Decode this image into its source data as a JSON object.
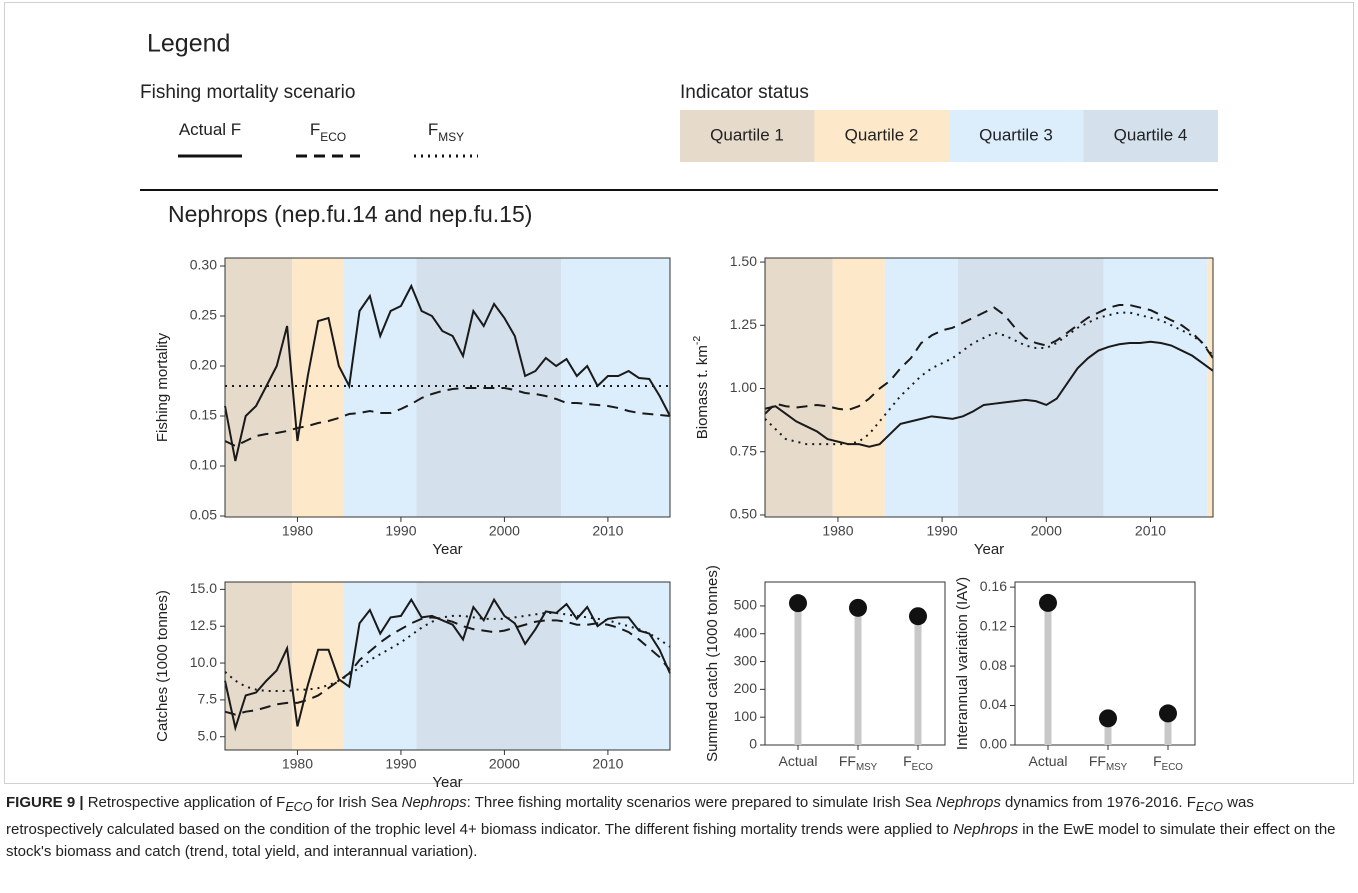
{
  "legend": {
    "title": "Legend",
    "scenario": {
      "title": "Fishing mortality scenario",
      "items": [
        {
          "label": [
            "Actual F"
          ],
          "dash": "solid"
        },
        {
          "label": [
            "F",
            "ECO"
          ],
          "dash": "dashed"
        },
        {
          "label": [
            "F",
            "MSY"
          ],
          "dash": "dotted"
        }
      ]
    },
    "status": {
      "title": "Indicator status",
      "items": [
        {
          "label": "Quartile 1",
          "color": "#e6dacb"
        },
        {
          "label": "Quartile 2",
          "color": "#fde9c9"
        },
        {
          "label": "Quartile 3",
          "color": "#dceefb"
        },
        {
          "label": "Quartile 4",
          "color": "#d4e1ed"
        }
      ]
    }
  },
  "panel_title": "Nephrops (nep.fu.14 and nep.fu.15)",
  "chart_data": [
    {
      "type": "line",
      "x_label": "Year",
      "y_label": [
        "Fishing mortality"
      ],
      "xlim": [
        1973,
        2016
      ],
      "xticks": [
        1980,
        1990,
        2000,
        2010
      ],
      "ylim": [
        0.049,
        0.308
      ],
      "yticks": [
        0.05,
        {
          "value": 0.1,
          "label": "0.10"
        },
        0.15,
        {
          "value": 0.2,
          "label": "0.20"
        },
        0.25,
        {
          "value": 0.3,
          "label": "0.30"
        }
      ],
      "bands": [
        {
          "start": 1973,
          "end": 1979.5,
          "color": "#e6dacb"
        },
        {
          "start": 1979.5,
          "end": 1984.5,
          "color": "#fde9c9"
        },
        {
          "start": 1984.5,
          "end": 1991.5,
          "color": "#dceefb"
        },
        {
          "start": 1991.5,
          "end": 2005.5,
          "color": "#d4e1ed"
        },
        {
          "start": 2005.5,
          "end": 2016,
          "color": "#dceefb"
        }
      ],
      "x": [
        1973,
        1974,
        1975,
        1976,
        1977,
        1978,
        1979,
        1980,
        1981,
        1982,
        1983,
        1984,
        1985,
        1986,
        1987,
        1988,
        1989,
        1990,
        1991,
        1992,
        1993,
        1994,
        1995,
        1996,
        1997,
        1998,
        1999,
        2000,
        2001,
        2002,
        2003,
        2004,
        2005,
        2006,
        2007,
        2008,
        2009,
        2010,
        2011,
        2012,
        2013,
        2014,
        2015,
        2016
      ],
      "series": [
        {
          "color": "#1a1a1a",
          "dash": "solid",
          "values": [
            0.16,
            0.105,
            0.15,
            0.16,
            0.18,
            0.2,
            0.24,
            0.125,
            0.19,
            0.245,
            0.248,
            0.2,
            0.18,
            0.255,
            0.27,
            0.23,
            0.255,
            0.26,
            0.28,
            0.255,
            0.25,
            0.235,
            0.23,
            0.21,
            0.255,
            0.24,
            0.262,
            0.248,
            0.23,
            0.19,
            0.195,
            0.208,
            0.2,
            0.207,
            0.19,
            0.2,
            0.18,
            0.19,
            0.19,
            0.195,
            0.188,
            0.187,
            0.17,
            0.15
          ]
        },
        {
          "color": "#1a1a1a",
          "dash": "dashed",
          "values": [
            0.125,
            0.12,
            0.125,
            0.13,
            0.132,
            0.133,
            0.135,
            0.138,
            0.14,
            0.143,
            0.145,
            0.148,
            0.152,
            0.153,
            0.155,
            0.153,
            0.153,
            0.157,
            0.162,
            0.168,
            0.172,
            0.175,
            0.177,
            0.178,
            0.178,
            0.178,
            0.178,
            0.178,
            0.176,
            0.173,
            0.172,
            0.17,
            0.167,
            0.163,
            0.163,
            0.162,
            0.161,
            0.16,
            0.158,
            0.155,
            0.153,
            0.152,
            0.151,
            0.15
          ]
        },
        {
          "color": "#1a1a1a",
          "dash": "dotted",
          "values": [
            0.18,
            0.18,
            0.18,
            0.18,
            0.18,
            0.18,
            0.18,
            0.18,
            0.18,
            0.18,
            0.18,
            0.18,
            0.18,
            0.18,
            0.18,
            0.18,
            0.18,
            0.18,
            0.18,
            0.18,
            0.18,
            0.18,
            0.18,
            0.18,
            0.18,
            0.18,
            0.18,
            0.18,
            0.18,
            0.18,
            0.18,
            0.18,
            0.18,
            0.18,
            0.18,
            0.18,
            0.18,
            0.18,
            0.18,
            0.18,
            0.18,
            0.18,
            0.18,
            0.18
          ]
        }
      ]
    },
    {
      "type": "line",
      "x_label": "Year",
      "y_label": [
        "Biomass t. km",
        "-2"
      ],
      "xlim": [
        1973,
        2016
      ],
      "xticks": [
        1980,
        1990,
        2000,
        2010
      ],
      "ylim": [
        0.492,
        1.516
      ],
      "yticks": [
        {
          "value": 0.5,
          "label": "0.50"
        },
        0.75,
        {
          "value": 1,
          "label": "1.00"
        },
        1.25,
        {
          "value": 1.5,
          "label": "1.50"
        }
      ],
      "bands": [
        {
          "start": 1973,
          "end": 1979.5,
          "color": "#e6dacb"
        },
        {
          "start": 1979.5,
          "end": 1984.5,
          "color": "#fde9c9"
        },
        {
          "start": 1984.5,
          "end": 1991.5,
          "color": "#dceefb"
        },
        {
          "start": 1991.5,
          "end": 2005.5,
          "color": "#d4e1ed"
        },
        {
          "start": 2005.5,
          "end": 2015.5,
          "color": "#dceefb"
        },
        {
          "start": 2015.5,
          "end": 2016,
          "color": "#fde9c9"
        }
      ],
      "x": [
        1973,
        1974,
        1975,
        1976,
        1977,
        1978,
        1979,
        1980,
        1981,
        1982,
        1983,
        1984,
        1985,
        1986,
        1987,
        1988,
        1989,
        1990,
        1991,
        1992,
        1993,
        1994,
        1995,
        1996,
        1997,
        1998,
        1999,
        2000,
        2001,
        2002,
        2003,
        2004,
        2005,
        2006,
        2007,
        2008,
        2009,
        2010,
        2011,
        2012,
        2013,
        2014,
        2015,
        2016
      ],
      "series": [
        {
          "color": "#1a1a1a",
          "dash": "solid",
          "values": [
            0.92,
            0.93,
            0.9,
            0.87,
            0.85,
            0.83,
            0.8,
            0.79,
            0.78,
            0.78,
            0.77,
            0.78,
            0.82,
            0.86,
            0.87,
            0.88,
            0.89,
            0.885,
            0.88,
            0.89,
            0.91,
            0.935,
            0.94,
            0.945,
            0.95,
            0.955,
            0.95,
            0.935,
            0.96,
            1.02,
            1.08,
            1.12,
            1.15,
            1.165,
            1.175,
            1.18,
            1.18,
            1.185,
            1.18,
            1.17,
            1.15,
            1.13,
            1.1,
            1.07
          ]
        },
        {
          "color": "#1a1a1a",
          "dash": "dashed",
          "values": [
            0.9,
            0.94,
            0.93,
            0.925,
            0.93,
            0.935,
            0.93,
            0.92,
            0.915,
            0.93,
            0.96,
            1.0,
            1.03,
            1.08,
            1.12,
            1.18,
            1.21,
            1.23,
            1.24,
            1.26,
            1.28,
            1.3,
            1.32,
            1.29,
            1.24,
            1.2,
            1.18,
            1.17,
            1.19,
            1.22,
            1.25,
            1.28,
            1.3,
            1.32,
            1.33,
            1.33,
            1.32,
            1.31,
            1.29,
            1.27,
            1.25,
            1.22,
            1.18,
            1.12
          ]
        },
        {
          "color": "#1a1a1a",
          "dash": "dotted",
          "values": [
            0.88,
            0.84,
            0.8,
            0.79,
            0.78,
            0.78,
            0.78,
            0.78,
            0.78,
            0.79,
            0.82,
            0.87,
            0.92,
            0.97,
            1.01,
            1.05,
            1.08,
            1.1,
            1.12,
            1.15,
            1.18,
            1.2,
            1.22,
            1.21,
            1.19,
            1.17,
            1.16,
            1.16,
            1.18,
            1.21,
            1.24,
            1.26,
            1.28,
            1.29,
            1.3,
            1.3,
            1.29,
            1.28,
            1.27,
            1.25,
            1.23,
            1.21,
            1.18,
            1.13
          ]
        }
      ]
    },
    {
      "type": "line",
      "x_label": "Year",
      "y_label": [
        "Catches (1000 tonnes)"
      ],
      "xlim": [
        1973,
        2016
      ],
      "xticks": [
        1980,
        1990,
        2000,
        2010
      ],
      "ylim": [
        4.1,
        15.5
      ],
      "yticks": [
        {
          "value": 5,
          "label": "5.0"
        },
        7.5,
        {
          "value": 10,
          "label": "10.0"
        },
        12.5,
        {
          "value": 15,
          "label": "15.0"
        }
      ],
      "bands": [
        {
          "start": 1973,
          "end": 1979.5,
          "color": "#e6dacb"
        },
        {
          "start": 1979.5,
          "end": 1984.5,
          "color": "#fde9c9"
        },
        {
          "start": 1984.5,
          "end": 1991.5,
          "color": "#dceefb"
        },
        {
          "start": 1991.5,
          "end": 2005.5,
          "color": "#d4e1ed"
        },
        {
          "start": 2005.5,
          "end": 2016,
          "color": "#dceefb"
        }
      ],
      "x": [
        1973,
        1974,
        1975,
        1976,
        1977,
        1978,
        1979,
        1980,
        1981,
        1982,
        1983,
        1984,
        1985,
        1986,
        1987,
        1988,
        1989,
        1990,
        1991,
        1992,
        1993,
        1994,
        1995,
        1996,
        1997,
        1998,
        1999,
        2000,
        2001,
        2002,
        2003,
        2004,
        2005,
        2006,
        2007,
        2008,
        2009,
        2010,
        2011,
        2012,
        2013,
        2014,
        2015,
        2016
      ],
      "series": [
        {
          "color": "#1a1a1a",
          "dash": "solid",
          "values": [
            8.8,
            5.6,
            7.8,
            8.0,
            8.8,
            9.5,
            11.0,
            5.7,
            8.5,
            10.9,
            10.9,
            8.9,
            8.4,
            12.7,
            13.6,
            12.0,
            13.1,
            13.2,
            14.3,
            13.1,
            13.2,
            12.9,
            12.6,
            11.6,
            13.8,
            12.9,
            14.3,
            13.2,
            12.7,
            11.3,
            12.3,
            13.5,
            13.4,
            14.0,
            13.0,
            13.8,
            12.5,
            13.0,
            13.1,
            13.1,
            12.2,
            12.0,
            10.9,
            9.3
          ]
        },
        {
          "color": "#1a1a1a",
          "dash": "dashed",
          "values": [
            6.7,
            6.5,
            6.7,
            6.8,
            7.0,
            7.2,
            7.3,
            7.3,
            7.5,
            7.8,
            8.3,
            8.8,
            9.3,
            10.2,
            10.8,
            11.4,
            11.9,
            12.3,
            12.7,
            13.0,
            13.1,
            13.0,
            12.8,
            12.5,
            12.3,
            12.2,
            12.1,
            12.2,
            12.4,
            12.6,
            12.8,
            12.9,
            12.9,
            12.8,
            12.6,
            12.6,
            12.7,
            12.6,
            12.4,
            12.1,
            11.6,
            11.0,
            10.4,
            9.5
          ]
        },
        {
          "color": "#1a1a1a",
          "dash": "dotted",
          "values": [
            9.4,
            8.8,
            8.4,
            8.2,
            8.1,
            8.1,
            8.1,
            8.2,
            8.2,
            8.3,
            8.5,
            8.8,
            9.2,
            9.7,
            10.2,
            10.6,
            11.0,
            11.4,
            11.9,
            12.4,
            12.8,
            13.1,
            13.2,
            13.2,
            13.1,
            13.0,
            13.0,
            13.0,
            13.1,
            13.2,
            13.3,
            13.4,
            13.4,
            13.3,
            13.2,
            13.1,
            13.0,
            12.9,
            12.7,
            12.5,
            12.3,
            12.0,
            11.6,
            11.1
          ]
        }
      ]
    },
    {
      "type": "lollipop",
      "y_label": [
        "Summed catch (1000 tonnes)"
      ],
      "categories": [
        [
          "Actual"
        ],
        [
          "FF",
          "MSY"
        ],
        [
          "F",
          "ECO"
        ]
      ],
      "values": [
        510,
        493,
        463
      ],
      "color": "#111111",
      "stem_color": "#c8c8c8",
      "ylim": [
        0,
        586
      ],
      "yticks": [
        0,
        100,
        200,
        300,
        400,
        500
      ]
    },
    {
      "type": "lollipop",
      "y_label": [
        "Interannual variation (IAV)"
      ],
      "categories": [
        [
          "Actual"
        ],
        [
          "FF",
          "MSY"
        ],
        [
          "F",
          "ECO"
        ]
      ],
      "values": [
        0.144,
        0.027,
        0.032
      ],
      "color": "#111111",
      "stem_color": "#c8c8c8",
      "ylim": [
        0,
        0.1652
      ],
      "yticks": [
        {
          "value": 0,
          "label": "0.00"
        },
        0.04,
        0.08,
        0.12,
        0.16
      ]
    }
  ],
  "caption": [
    "FIGURE 9 |",
    " Retrospective application of F",
    "ECO",
    " for Irish Sea ",
    "Nephrops",
    ": Three fishing mortality scenarios were prepared to simulate Irish Sea ",
    "Nephrops",
    " dynamics from 1976-2016. F",
    "ECO",
    " was retrospectively calculated based on the condition of the trophic level 4+ biomass indicator. The different fishing mortality trends were applied to ",
    "Nephrops",
    " in the EwE model to simulate their effect on the stock's biomass and catch (trend, total yield, and interannual variation)."
  ]
}
